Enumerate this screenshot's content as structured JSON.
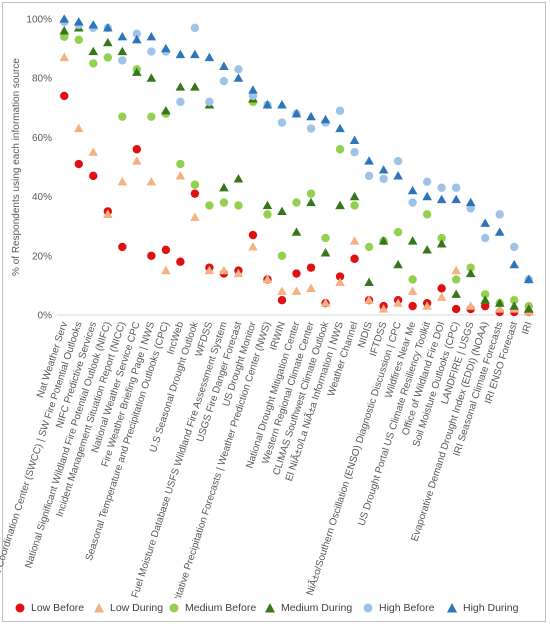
{
  "chart_data": {
    "type": "scatter",
    "title": "",
    "ylabel": "% of Respondents using each information source",
    "xlabel": "",
    "ylim": [
      0,
      100
    ],
    "yticks": [
      "0%",
      "20%",
      "40%",
      "60%",
      "80%",
      "100%"
    ],
    "grid": false,
    "legend_position": "bottom",
    "categories": [
      "Nat Weather Serv",
      "Southwest Coordination Center (SWCC) | SW Fire Potential Outlooks",
      "NIFC Predictive Services",
      "National Significant Wildland Fire Potential Outlook (NIFC)",
      "Incident Management Situation Report (NICC)",
      "National Weather Service CPC",
      "Fire Weather Briefing Page | NWS",
      "Seasonal Temperature and Precipitation Outlooks (CPC)",
      "IncWeb",
      "U.S Seasonal Drought Outlook",
      "WFDSS",
      "National Fuel Moisture Database USFS Wildland Fire Assessment System",
      "USGS Fire Danger Forecast",
      "US Drought Monitor",
      "Quantitative Precipitation Forecasts | Weather Prediction Center (NWS)",
      "IRWIN",
      "National Drought Mitigation Center",
      "Western Regional Climate Center",
      "CLIMAS Southwest Climate Outlook",
      "El NiÃ±o/La NiÃ±a Information | NWS",
      "Weather Channel",
      "NIDIS",
      "IFTDSS",
      "NiÃ±o/Southern Oscillation (ENSO) Diagnostic Discussion | CPC",
      "Wildfires Near Me",
      "US Drought Portal  US Climate Resiliency Toolkit",
      "Office of Wildland Fire DOI",
      "Soil Moisture Outlooks (CPC)",
      "LANDFIRE | USGS",
      "Evaporative Demand Drought Index (EDDI) (NOAA)",
      "IRI Seasonal Climate Forecasts",
      "IRI ENSO Forecast",
      "IRI"
    ],
    "series": [
      {
        "name": "Low Before",
        "color": "#e01010",
        "marker": "circle",
        "values": [
          74,
          51,
          47,
          35,
          23,
          56,
          20,
          22,
          18,
          41,
          16,
          14,
          15,
          27,
          12,
          5,
          14,
          16,
          4,
          13,
          19,
          5,
          3,
          5,
          3,
          4,
          9,
          2,
          2,
          3,
          1,
          1,
          1
        ]
      },
      {
        "name": "Low During",
        "color": "#f4b183",
        "marker": "triangle",
        "values": [
          87,
          63,
          55,
          34,
          45,
          52,
          45,
          15,
          47,
          33,
          15,
          15,
          14,
          23,
          12,
          8,
          8,
          9,
          4,
          11,
          25,
          5,
          2,
          4,
          8,
          3,
          6,
          15,
          3,
          5,
          2,
          2,
          1
        ]
      },
      {
        "name": "Medium Before",
        "color": "#92d050",
        "marker": "circle",
        "values": [
          94,
          93,
          85,
          87,
          67,
          83,
          67,
          68,
          51,
          44,
          37,
          38,
          37,
          72,
          34,
          20,
          38,
          41,
          26,
          56,
          37,
          23,
          25,
          28,
          12,
          34,
          26,
          12,
          16,
          7,
          4,
          5,
          3
        ]
      },
      {
        "name": "Medium During",
        "color": "#38761d",
        "marker": "triangle",
        "values": [
          96,
          97,
          89,
          92,
          89,
          82,
          80,
          69,
          77,
          77,
          71,
          43,
          46,
          73,
          37,
          35,
          28,
          38,
          21,
          37,
          40,
          11,
          25,
          17,
          25,
          22,
          24,
          7,
          14,
          5,
          4,
          3,
          2
        ]
      },
      {
        "name": "High Before",
        "color": "#9dc3e6",
        "marker": "circle",
        "values": [
          99,
          98,
          97,
          97,
          86,
          95,
          89,
          89,
          72,
          97,
          72,
          79,
          83,
          74,
          71,
          65,
          68,
          63,
          65,
          69,
          55,
          47,
          46,
          52,
          38,
          45,
          43,
          43,
          36,
          26,
          34,
          23,
          12
        ]
      },
      {
        "name": "High During",
        "color": "#2e75b6",
        "marker": "triangle",
        "values": [
          100,
          99,
          98,
          97,
          94,
          93,
          94,
          90,
          88,
          88,
          87,
          84,
          80,
          76,
          71,
          71,
          68,
          67,
          66,
          63,
          59,
          52,
          49,
          47,
          42,
          40,
          39,
          39,
          38,
          31,
          28,
          17,
          12
        ]
      }
    ]
  }
}
